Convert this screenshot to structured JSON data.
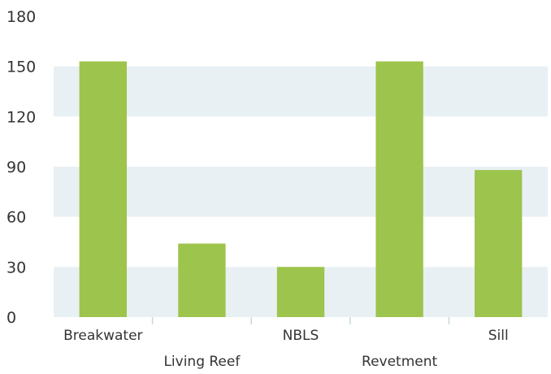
{
  "chart_data": {
    "type": "bar",
    "categories": [
      "Breakwater",
      "Living Reef",
      "NBLS",
      "Revetment",
      "Sill"
    ],
    "values": [
      153,
      44,
      30,
      153,
      88
    ],
    "ylim": [
      0,
      180
    ],
    "yticks": [
      0,
      30,
      60,
      90,
      120,
      150,
      180
    ],
    "grid": "alternating horizontal bands",
    "legend": "none",
    "colors": {
      "bar": "#9dc44d",
      "band": "#e8f0f4",
      "axis_tick": "#c6d8e2",
      "text": "#333333"
    }
  }
}
